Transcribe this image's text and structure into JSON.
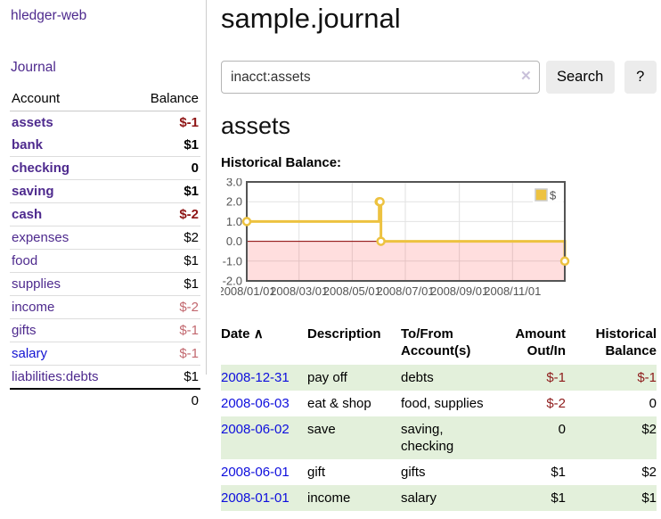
{
  "app": {
    "title": "hledger-web"
  },
  "sidebar": {
    "journal_link": "Journal",
    "account_header": "Account",
    "balance_header": "Balance",
    "accounts": [
      {
        "name": "assets",
        "balance": "$-1",
        "indent": 0,
        "bold": true,
        "balance_style": "neg-dark"
      },
      {
        "name": "bank",
        "balance": "$1",
        "indent": 1,
        "bold": true,
        "balance_style": "normal"
      },
      {
        "name": "checking",
        "balance": "0",
        "indent": 2,
        "bold": true,
        "balance_style": "normal"
      },
      {
        "name": "saving",
        "balance": "$1",
        "indent": 2,
        "bold": true,
        "balance_style": "normal"
      },
      {
        "name": "cash",
        "balance": "$-2",
        "indent": 1,
        "bold": true,
        "balance_style": "neg-dark"
      },
      {
        "name": "expenses",
        "balance": "$2",
        "indent": 0,
        "bold": false,
        "balance_style": "normal"
      },
      {
        "name": "food",
        "balance": "$1",
        "indent": 1,
        "bold": false,
        "balance_style": "normal"
      },
      {
        "name": "supplies",
        "balance": "$1",
        "indent": 1,
        "bold": false,
        "balance_style": "normal"
      },
      {
        "name": "income",
        "balance": "$-2",
        "indent": 0,
        "bold": false,
        "balance_style": "neg-light"
      },
      {
        "name": "gifts",
        "balance": "$-1",
        "indent": 1,
        "bold": false,
        "balance_style": "neg-light"
      },
      {
        "name": "salary",
        "balance": "$-1",
        "indent": 1,
        "bold": false,
        "balance_style": "neg-light",
        "link_style": "blue"
      },
      {
        "name": "liabilities:debts",
        "balance": "$1",
        "indent": 0,
        "bold": false,
        "balance_style": "normal"
      }
    ],
    "total": "0"
  },
  "header": {
    "title": "sample.journal"
  },
  "search": {
    "value": "inacct:assets",
    "clear_icon": "✕",
    "search_button": "Search",
    "help_button": "?"
  },
  "main": {
    "account_title": "assets",
    "chart_label": "Historical Balance:"
  },
  "chart_data": {
    "type": "line",
    "step": true,
    "title": "Historical Balance",
    "series": [
      {
        "name": "$",
        "color": "#edc240",
        "points": [
          [
            "2008-01-01",
            1
          ],
          [
            "2008-06-01",
            2
          ],
          [
            "2008-06-02",
            2
          ],
          [
            "2008-06-03",
            0
          ],
          [
            "2008-12-31",
            -1
          ]
        ]
      }
    ],
    "xrange": [
      "2008-01-01",
      "2008-12-31"
    ],
    "ylim": [
      -2,
      3
    ],
    "y_ticks": [
      3.0,
      2.0,
      1.0,
      0.0,
      -1.0,
      -2.0
    ],
    "x_ticks": [
      "2008/01/01",
      "2008/03/01",
      "2008/05/01",
      "2008/07/01",
      "2008/09/01",
      "2008/11/01"
    ],
    "legend": {
      "label": "$",
      "position": "top-right"
    },
    "grid": true,
    "negative_region_color": "rgba(255,0,0,0.13)",
    "zero_line_color": "#8b0000",
    "border_color": "#545454",
    "tick_label_color": "#545454"
  },
  "register": {
    "sort_indicator": "∧",
    "headers": {
      "date": "Date",
      "description": "Description",
      "accounts": "To/From Account(s)",
      "amount": "Amount Out/In",
      "balance": "Historical Balance"
    },
    "rows": [
      {
        "date": "2008-12-31",
        "description": "pay off",
        "accounts": "debts",
        "amount": "$-1",
        "amount_neg": true,
        "balance": "$-1",
        "balance_neg": true
      },
      {
        "date": "2008-06-03",
        "description": "eat & shop",
        "accounts": "food, supplies",
        "amount": "$-2",
        "amount_neg": true,
        "balance": "0",
        "balance_neg": false
      },
      {
        "date": "2008-06-02",
        "description": "save",
        "accounts": "saving, checking",
        "amount": "0",
        "amount_neg": false,
        "balance": "$2",
        "balance_neg": false
      },
      {
        "date": "2008-06-01",
        "description": "gift",
        "accounts": "gifts",
        "amount": "$1",
        "amount_neg": false,
        "balance": "$2",
        "balance_neg": false
      },
      {
        "date": "2008-01-01",
        "description": "income",
        "accounts": "salary",
        "amount": "$1",
        "amount_neg": false,
        "balance": "$1",
        "balance_neg": false
      }
    ]
  }
}
